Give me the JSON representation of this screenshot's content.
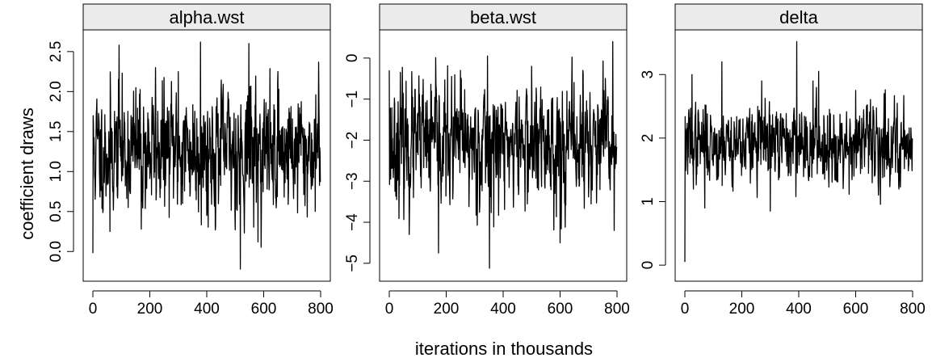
{
  "figure": {
    "ylabel": "coefficient draws",
    "xlabel": "iterations in thousands"
  },
  "chart_data": [
    {
      "type": "line",
      "title": "alpha.wst",
      "xlim": [
        0,
        800
      ],
      "ylim": [
        -0.25,
        2.65
      ],
      "x_ticks": [
        0,
        200,
        400,
        600,
        800
      ],
      "y_ticks": [
        0.0,
        0.5,
        1.0,
        1.5,
        2.0,
        2.5
      ],
      "x_tick_labels": [
        "0",
        "200",
        "400",
        "600",
        "800"
      ],
      "y_tick_labels": [
        "0.0",
        "0.5",
        "1.0",
        "1.5",
        "2.0",
        "2.5"
      ],
      "series_style": {
        "color": "#000000"
      },
      "trace": {
        "n": 800,
        "start": -0.02,
        "mean": 1.27,
        "sd": 0.36,
        "seed": 11,
        "peaks": [
          [
            92,
            2.58
          ],
          [
            378,
            2.62
          ],
          [
            548,
            2.6
          ],
          [
            518,
            -0.22
          ],
          [
            580,
            0.12
          ],
          [
            220,
            2.3
          ],
          [
            300,
            2.25
          ],
          [
            650,
            2.25
          ],
          [
            60,
            0.25
          ],
          [
            170,
            0.28
          ],
          [
            400,
            0.45
          ]
        ]
      }
    },
    {
      "type": "line",
      "title": "beta.wst",
      "xlim": [
        0,
        800
      ],
      "ylim": [
        -5.2,
        0.45
      ],
      "x_ticks": [
        0,
        200,
        400,
        600,
        800
      ],
      "y_ticks": [
        -5,
        -4,
        -3,
        -2,
        -1,
        0
      ],
      "x_tick_labels": [
        "0",
        "200",
        "400",
        "600",
        "800"
      ],
      "y_tick_labels": [
        "−5",
        "−4",
        "−3",
        "−2",
        "−1",
        "0"
      ],
      "series_style": {
        "color": "#000000"
      },
      "trace": {
        "n": 800,
        "start": -0.3,
        "mean": -2.1,
        "sd": 0.68,
        "seed": 23,
        "peaks": [
          [
            352,
            -5.12
          ],
          [
            173,
            -4.75
          ],
          [
            345,
            0.05
          ],
          [
            785,
            0.4
          ],
          [
            790,
            -4.2
          ],
          [
            600,
            -4.5
          ],
          [
            70,
            -4.3
          ],
          [
            500,
            -0.2
          ],
          [
            250,
            -0.3
          ],
          [
            680,
            -0.3
          ]
        ]
      }
    },
    {
      "type": "line",
      "title": "delta",
      "xlim": [
        0,
        800
      ],
      "ylim": [
        -0.1,
        3.55
      ],
      "x_ticks": [
        0,
        200,
        400,
        600,
        800
      ],
      "y_ticks": [
        0,
        1,
        2,
        3
      ],
      "x_tick_labels": [
        "0",
        "200",
        "400",
        "600",
        "800"
      ],
      "y_tick_labels": [
        "0",
        "1",
        "2",
        "3"
      ],
      "series_style": {
        "color": "#000000"
      },
      "trace": {
        "n": 800,
        "start": 0.05,
        "mean": 1.92,
        "sd": 0.28,
        "seed": 37,
        "peaks": [
          [
            393,
            3.52
          ],
          [
            25,
            3.0
          ],
          [
            130,
            3.2
          ],
          [
            270,
            2.9
          ],
          [
            450,
            2.9
          ],
          [
            470,
            3.05
          ],
          [
            300,
            0.85
          ],
          [
            70,
            0.9
          ],
          [
            600,
            2.75
          ],
          [
            700,
            2.7
          ]
        ]
      }
    }
  ]
}
